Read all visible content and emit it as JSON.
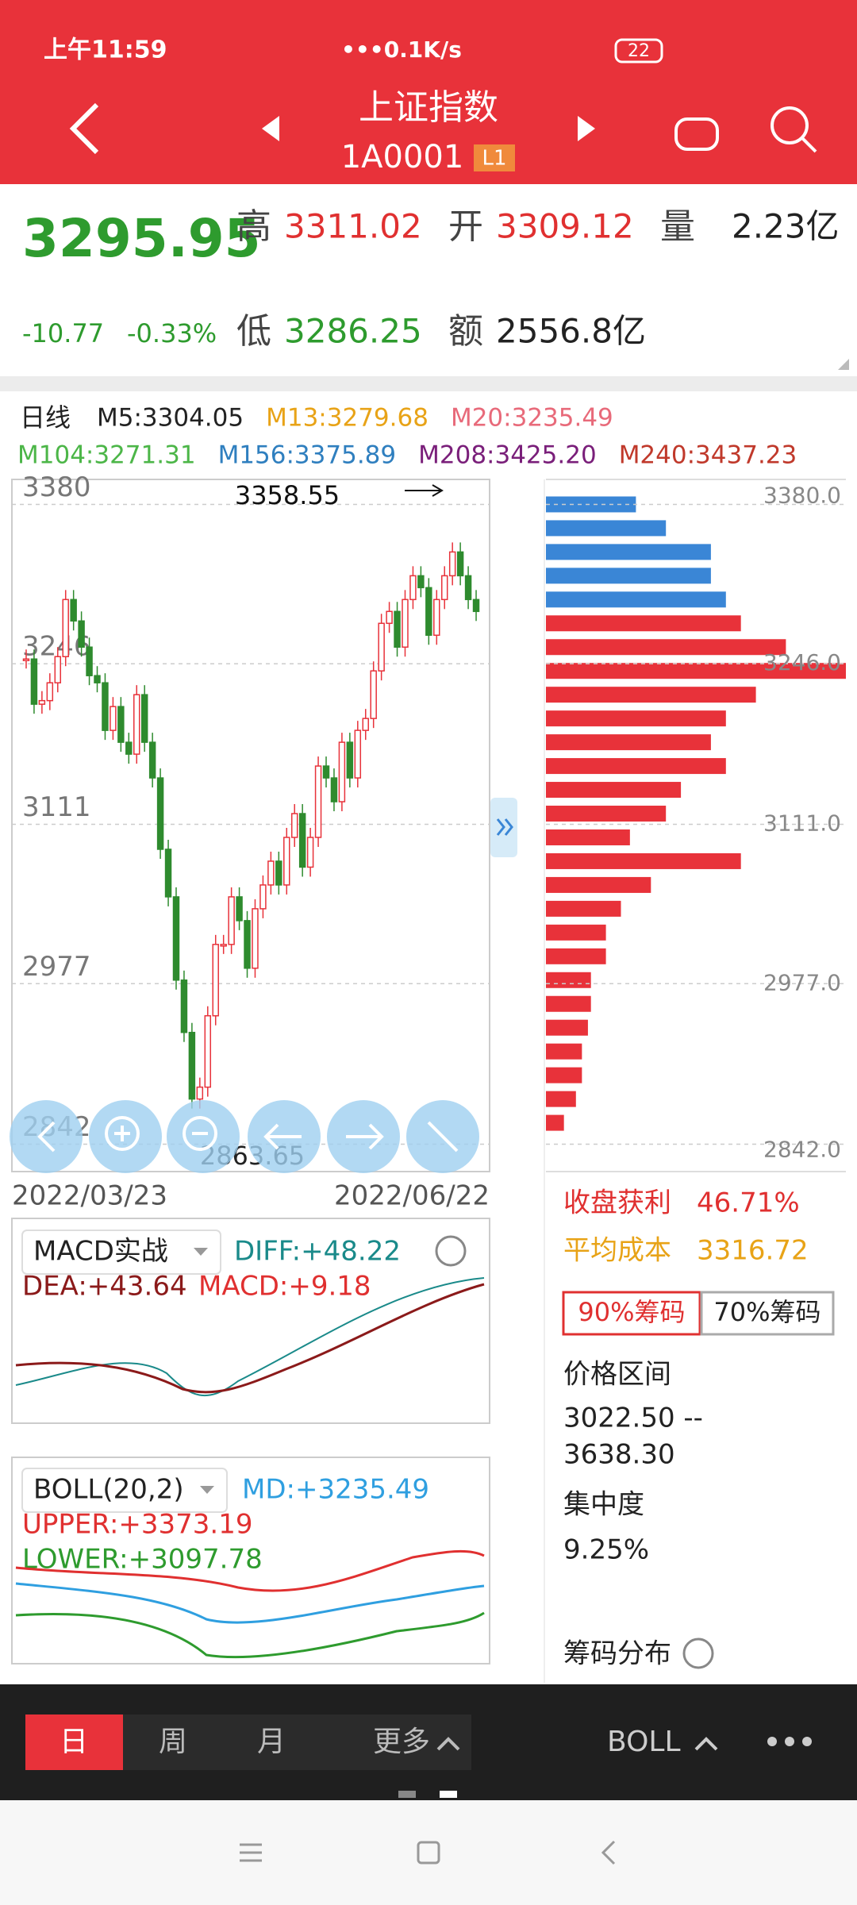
{
  "status_bar": {
    "time": "上午11:59",
    "network_speed": "•••0.1K/s",
    "battery": "22"
  },
  "header": {
    "title": "上证指数",
    "code": "1A0001",
    "badge": "L1"
  },
  "quote": {
    "price": "3295.95",
    "change": "-10.77",
    "change_pct": "-0.33%",
    "high_label": "高",
    "high": "3311.02",
    "open_label": "开",
    "open": "3309.12",
    "volume_label": "量",
    "volume": "2.23亿",
    "low_label": "低",
    "low": "3286.25",
    "amount_label": "额",
    "amount": "2556.8亿"
  },
  "ma_legend": {
    "period": "日线",
    "items": [
      {
        "text": "M5:3304.05",
        "color": "#222222"
      },
      {
        "text": "M13:3279.68",
        "color": "#e8a317"
      },
      {
        "text": "M20:3235.49",
        "color": "#e86a7a"
      },
      {
        "text": "M104:3271.31",
        "color": "#4cb648"
      },
      {
        "text": "M156:3375.89",
        "color": "#2f7fbf"
      },
      {
        "text": "M208:3425.20",
        "color": "#7a1f7a"
      },
      {
        "text": "M240:3437.23",
        "color": "#c0392b"
      }
    ]
  },
  "chart_data": {
    "type": "candlestick",
    "closes": [
      3250,
      3212,
      3215,
      3230,
      3252,
      3300,
      3282,
      3260,
      3236,
      3230,
      3190,
      3210,
      3180,
      3170,
      3220,
      3180,
      3150,
      3090,
      3050,
      2980,
      2936,
      2880,
      2890,
      2950,
      3010,
      3010,
      3050,
      3030,
      2990,
      3040,
      3060,
      3080,
      3060,
      3100,
      3120,
      3075,
      3100,
      3160,
      3150,
      3130,
      3180,
      3150,
      3190,
      3200,
      3240,
      3280,
      3290,
      3260,
      3300,
      3320,
      3310,
      3270,
      3300,
      3320,
      3340,
      3320,
      3300,
      3290
    ],
    "ylim": [
      2819,
      3401
    ],
    "yticks": [
      3380,
      3246,
      3111,
      2977,
      2842
    ],
    "x_labels": [
      "2022/03/23",
      "2022/06/22"
    ],
    "high_annotation": "3358.55",
    "low_annotation": "2863.65",
    "up_color": "#e8323a",
    "down_color": "#2e8b2e"
  },
  "chip_distribution": {
    "prices": [
      3380,
      3360,
      3340,
      3320,
      3300,
      3280,
      3260,
      3240,
      3220,
      3200,
      3180,
      3160,
      3140,
      3120,
      3100,
      3080,
      3060,
      3040,
      3020,
      3000,
      2980,
      2960,
      2940,
      2920,
      2900,
      2880,
      2860
    ],
    "values": [
      30,
      40,
      55,
      55,
      60,
      65,
      80,
      100,
      70,
      60,
      55,
      60,
      45,
      40,
      28,
      65,
      35,
      25,
      20,
      20,
      15,
      15,
      14,
      12,
      12,
      10,
      6
    ],
    "xlim": [
      0,
      100
    ],
    "yticks": [
      {
        "value": 3380,
        "label": "3380.0"
      },
      {
        "value": 3246,
        "label": "3246.0"
      },
      {
        "value": 3111,
        "label": "3111.0"
      },
      {
        "value": 2977,
        "label": "2977.0"
      },
      {
        "value": 2842,
        "label": "2842.0"
      }
    ],
    "above_color": "#3a86d6",
    "below_color": "#e8323a"
  },
  "macd_panel": {
    "name": "MACD实战",
    "diff": "DIFF:+48.22",
    "dea": "DEA:+43.64",
    "macd": "MACD:+9.18"
  },
  "boll_panel": {
    "name": "BOLL(20,2)",
    "md": "MD:+3235.49",
    "upper": "UPPER:+3373.19",
    "lower": "LOWER:+3097.78"
  },
  "chip_panel": {
    "profit_label": "收盘获利",
    "profit": "46.71%",
    "avg_cost_label": "平均成本",
    "avg_cost": "3316.72",
    "buttons": [
      "90%筹码",
      "70%筹码"
    ],
    "range_label": "价格区间",
    "range_low": "3022.50 --",
    "range_high": "3638.30",
    "concentration_label": "集中度",
    "concentration": "9.25%",
    "title": "筹码分布"
  },
  "toolbar": {
    "tabs": [
      "日",
      "周",
      "月",
      "更多"
    ],
    "indicator": "BOLL"
  }
}
